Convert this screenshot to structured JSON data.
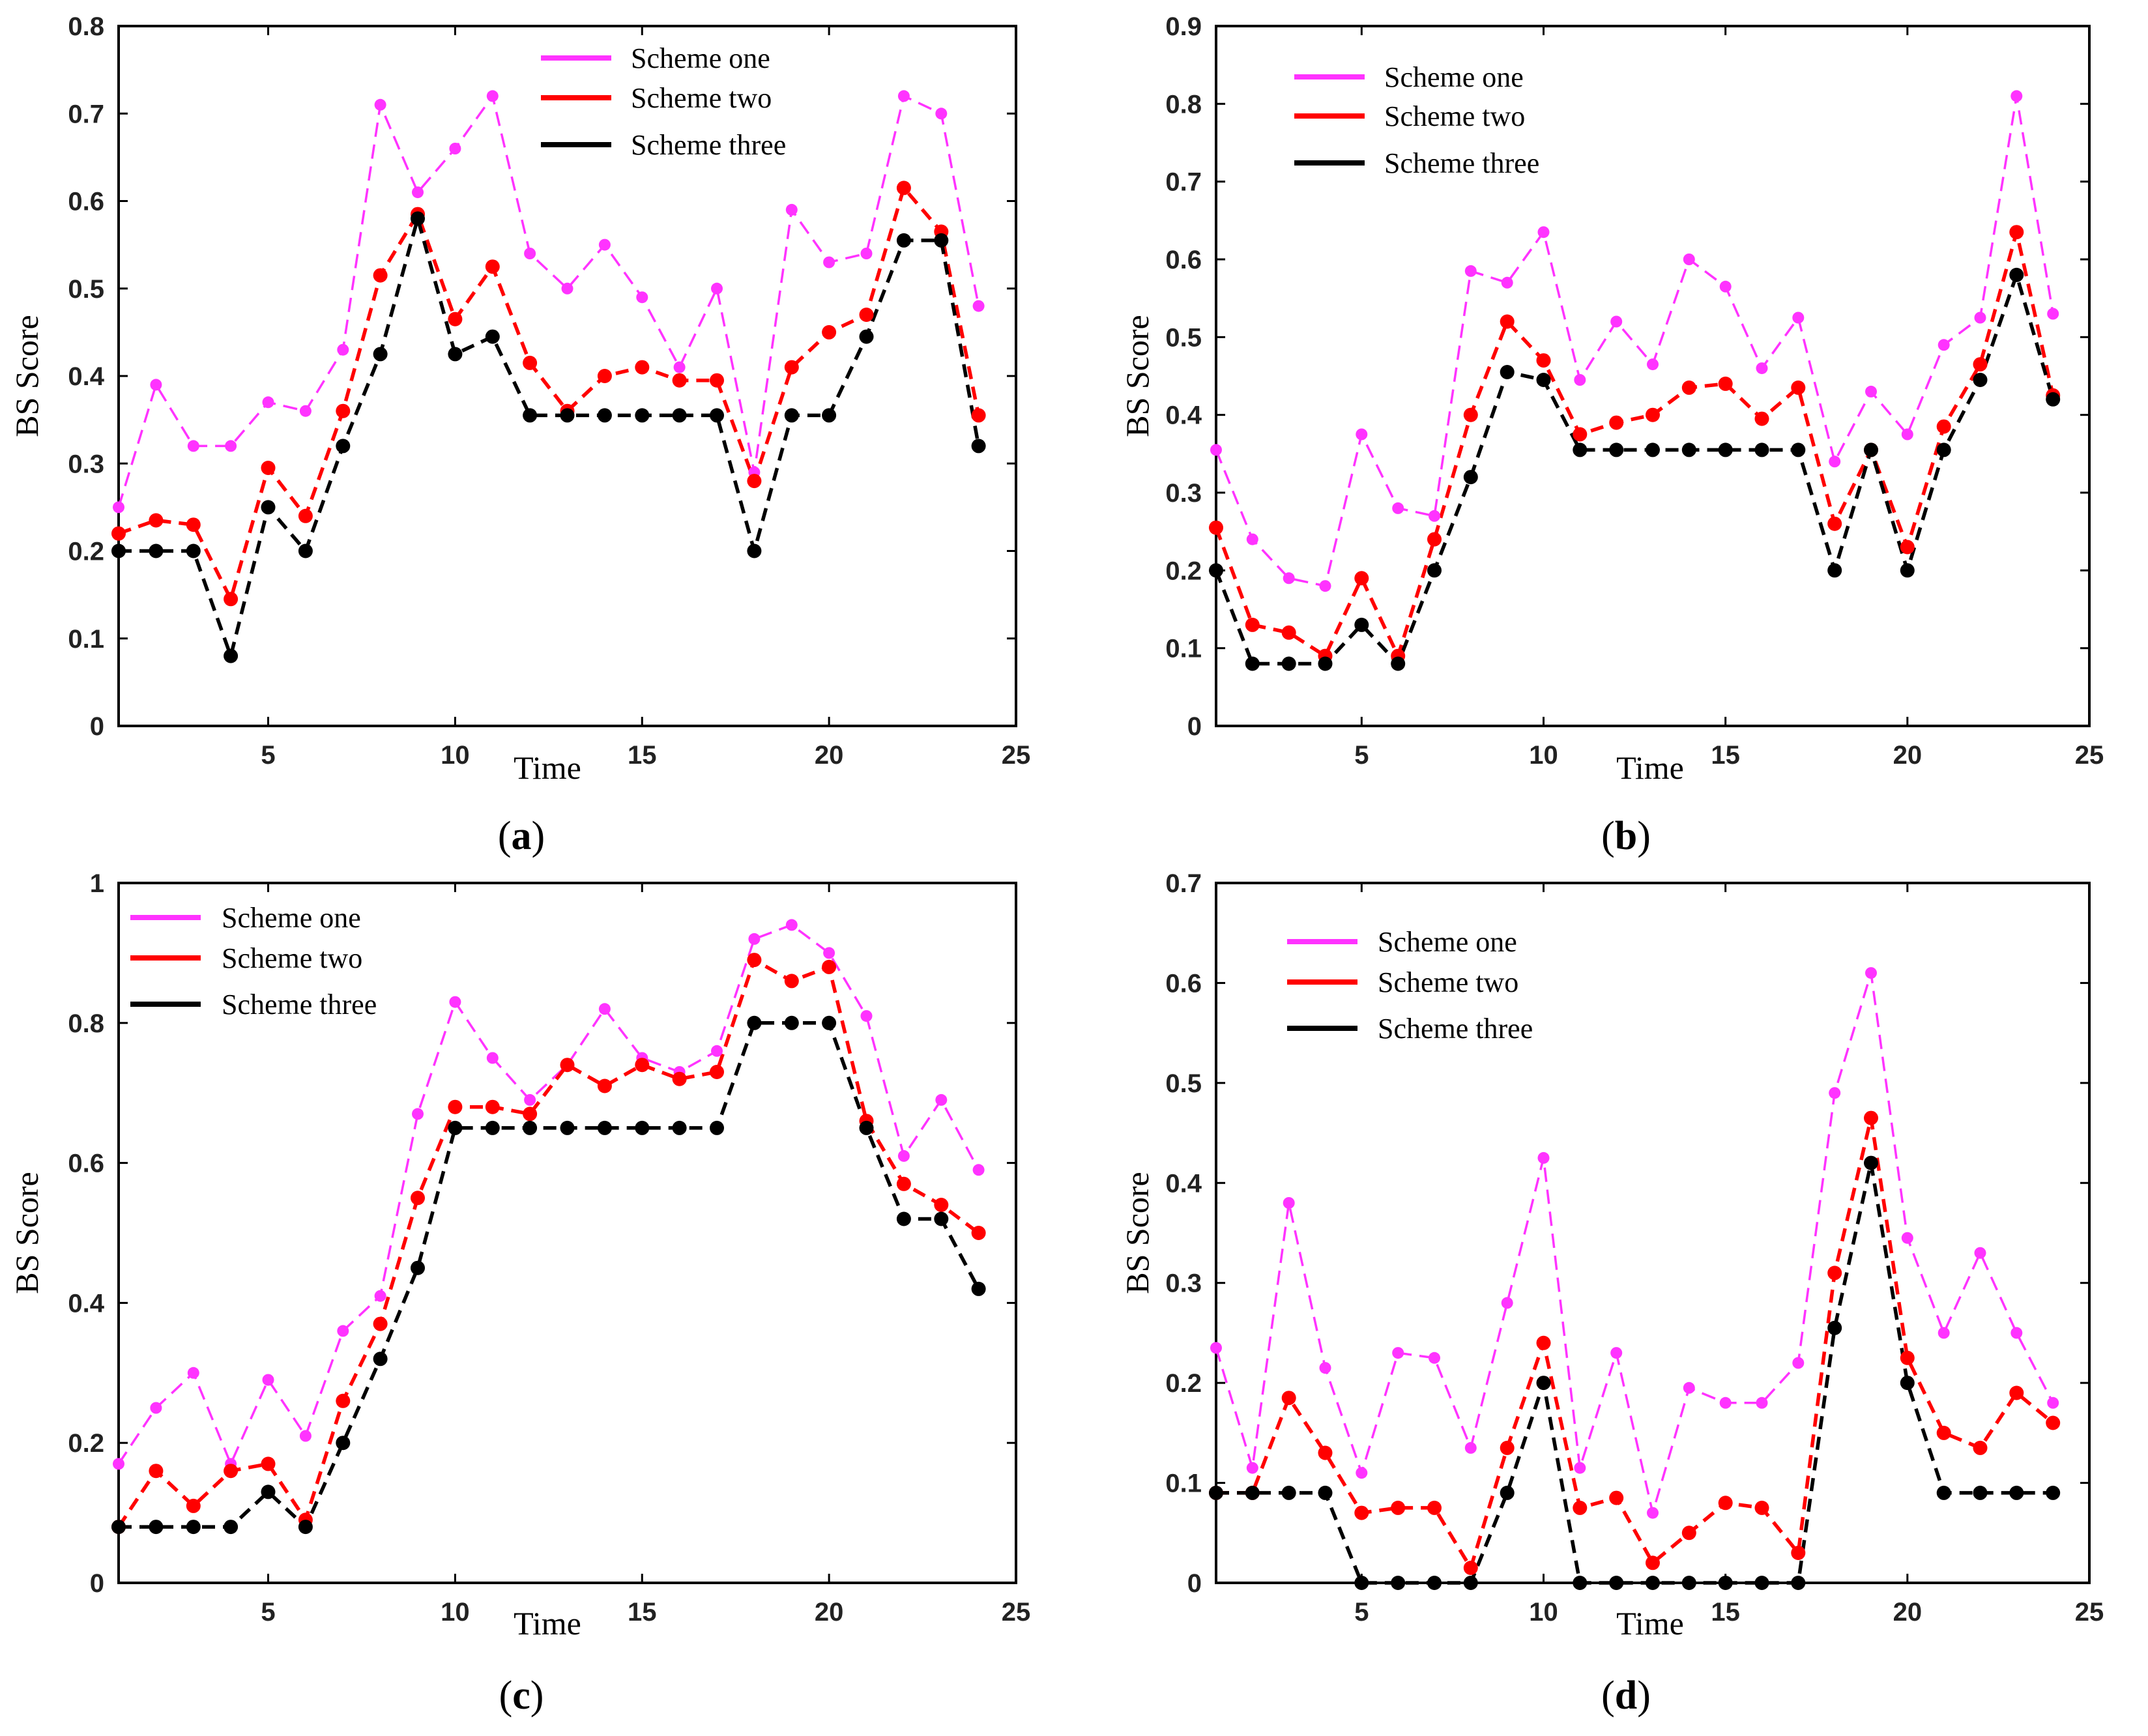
{
  "colors": {
    "scheme_one": "#ff33ff",
    "scheme_two": "#ff0000",
    "scheme_three": "#000000"
  },
  "chart_data": [
    {
      "type": "line",
      "panel": "a",
      "caption": {
        "open": "(",
        "letter": "a",
        "close": ")"
      },
      "xlabel": "Time",
      "ylabel": "BS Score",
      "xlim": [
        1,
        25
      ],
      "ylim": [
        0,
        0.8
      ],
      "xticks": [
        5,
        10,
        15,
        20,
        25
      ],
      "xtick_labels": [
        "5",
        "10",
        "15",
        "20",
        "25"
      ],
      "yticks": [
        0,
        0.1,
        0.2,
        0.3,
        0.4,
        0.5,
        0.6,
        0.7,
        0.8
      ],
      "ytick_labels": [
        "0",
        "0.1",
        "0.2",
        "0.3",
        "0.4",
        "0.5",
        "0.6",
        "0.7",
        "0.8"
      ],
      "legend_position": "top-center",
      "x": [
        1,
        2,
        3,
        4,
        5,
        6,
        7,
        8,
        9,
        10,
        11,
        12,
        13,
        14,
        15,
        16,
        17,
        18,
        19,
        20,
        21,
        22,
        23,
        24
      ],
      "series": [
        {
          "name": "Scheme one",
          "color": "#ff33ff",
          "values": [
            0.25,
            0.39,
            0.32,
            0.32,
            0.37,
            0.36,
            0.43,
            0.71,
            0.61,
            0.66,
            0.72,
            0.54,
            0.5,
            0.55,
            0.49,
            0.41,
            0.5,
            0.29,
            0.59,
            0.53,
            0.54,
            0.72,
            0.7,
            0.48
          ]
        },
        {
          "name": "Scheme two",
          "color": "#ff0000",
          "values": [
            0.22,
            0.235,
            0.23,
            0.145,
            0.295,
            0.24,
            0.36,
            0.515,
            0.585,
            0.465,
            0.525,
            0.415,
            0.36,
            0.4,
            0.41,
            0.395,
            0.395,
            0.28,
            0.41,
            0.45,
            0.47,
            0.615,
            0.565,
            0.355
          ]
        },
        {
          "name": "Scheme three",
          "color": "#000000",
          "values": [
            0.2,
            0.2,
            0.2,
            0.08,
            0.25,
            0.2,
            0.32,
            0.425,
            0.58,
            0.425,
            0.445,
            0.355,
            0.355,
            0.355,
            0.355,
            0.355,
            0.355,
            0.2,
            0.355,
            0.355,
            0.445,
            0.555,
            0.555,
            0.32
          ]
        }
      ]
    },
    {
      "type": "line",
      "panel": "b",
      "caption": {
        "open": "(",
        "letter": "b",
        "close": ")"
      },
      "xlabel": "Time",
      "ylabel": "BS Score",
      "xlim": [
        1,
        25
      ],
      "ylim": [
        0,
        0.9
      ],
      "xticks": [
        5,
        10,
        15,
        20,
        25
      ],
      "xtick_labels": [
        "5",
        "10",
        "15",
        "20",
        "25"
      ],
      "yticks": [
        0,
        0.1,
        0.2,
        0.3,
        0.4,
        0.5,
        0.6,
        0.7,
        0.8,
        0.9
      ],
      "ytick_labels": [
        "0",
        "0.1",
        "0.2",
        "0.3",
        "0.4",
        "0.5",
        "0.6",
        "0.7",
        "0.8",
        "0.9"
      ],
      "legend_position": "top-left",
      "x": [
        1,
        2,
        3,
        4,
        5,
        6,
        7,
        8,
        9,
        10,
        11,
        12,
        13,
        14,
        15,
        16,
        17,
        18,
        19,
        20,
        21,
        22,
        23,
        24
      ],
      "series": [
        {
          "name": "Scheme one",
          "color": "#ff33ff",
          "values": [
            0.355,
            0.24,
            0.19,
            0.18,
            0.375,
            0.28,
            0.27,
            0.585,
            0.57,
            0.635,
            0.445,
            0.52,
            0.465,
            0.6,
            0.565,
            0.46,
            0.525,
            0.34,
            0.43,
            0.375,
            0.49,
            0.525,
            0.81,
            0.53
          ]
        },
        {
          "name": "Scheme two",
          "color": "#ff0000",
          "values": [
            0.255,
            0.13,
            0.12,
            0.09,
            0.19,
            0.09,
            0.24,
            0.4,
            0.52,
            0.47,
            0.375,
            0.39,
            0.4,
            0.435,
            0.44,
            0.395,
            0.435,
            0.26,
            0.355,
            0.23,
            0.385,
            0.465,
            0.635,
            0.425
          ]
        },
        {
          "name": "Scheme three",
          "color": "#000000",
          "values": [
            0.2,
            0.08,
            0.08,
            0.08,
            0.13,
            0.08,
            0.2,
            0.32,
            0.455,
            0.445,
            0.355,
            0.355,
            0.355,
            0.355,
            0.355,
            0.355,
            0.355,
            0.2,
            0.355,
            0.2,
            0.355,
            0.445,
            0.58,
            0.42
          ]
        }
      ]
    },
    {
      "type": "line",
      "panel": "c",
      "caption": {
        "open": "(",
        "letter": "c",
        "close": ")"
      },
      "xlabel": "Time",
      "ylabel": "BS Score",
      "xlim": [
        1,
        25
      ],
      "ylim": [
        0,
        1.0
      ],
      "xticks": [
        5,
        10,
        15,
        20,
        25
      ],
      "xtick_labels": [
        "5",
        "10",
        "15",
        "20",
        "25"
      ],
      "yticks": [
        0,
        0.2,
        0.4,
        0.6,
        0.8,
        1.0
      ],
      "ytick_labels": [
        "0",
        "0.2",
        "0.4",
        "0.6",
        "0.8",
        "1"
      ],
      "legend_position": "top-left",
      "x": [
        1,
        2,
        3,
        4,
        5,
        6,
        7,
        8,
        9,
        10,
        11,
        12,
        13,
        14,
        15,
        16,
        17,
        18,
        19,
        20,
        21,
        22,
        23,
        24
      ],
      "series": [
        {
          "name": "Scheme one",
          "color": "#ff33ff",
          "values": [
            0.17,
            0.25,
            0.3,
            0.17,
            0.29,
            0.21,
            0.36,
            0.41,
            0.67,
            0.83,
            0.75,
            0.69,
            0.74,
            0.82,
            0.75,
            0.73,
            0.76,
            0.92,
            0.94,
            0.9,
            0.81,
            0.61,
            0.69,
            0.59
          ]
        },
        {
          "name": "Scheme two",
          "color": "#ff0000",
          "values": [
            0.08,
            0.16,
            0.11,
            0.16,
            0.17,
            0.09,
            0.26,
            0.37,
            0.55,
            0.68,
            0.68,
            0.67,
            0.74,
            0.71,
            0.74,
            0.72,
            0.73,
            0.89,
            0.86,
            0.88,
            0.66,
            0.57,
            0.54,
            0.5
          ]
        },
        {
          "name": "Scheme three",
          "color": "#000000",
          "values": [
            0.08,
            0.08,
            0.08,
            0.08,
            0.13,
            0.08,
            0.2,
            0.32,
            0.45,
            0.65,
            0.65,
            0.65,
            0.65,
            0.65,
            0.65,
            0.65,
            0.65,
            0.8,
            0.8,
            0.8,
            0.65,
            0.52,
            0.52,
            0.42
          ]
        }
      ]
    },
    {
      "type": "line",
      "panel": "d",
      "caption": {
        "open": "(",
        "letter": "d",
        "close": ")"
      },
      "xlabel": "Time",
      "ylabel": "BS Score",
      "xlim": [
        1,
        25
      ],
      "ylim": [
        0,
        0.7
      ],
      "xticks": [
        5,
        10,
        15,
        20,
        25
      ],
      "xtick_labels": [
        "5",
        "10",
        "15",
        "20",
        "25"
      ],
      "yticks": [
        0,
        0.1,
        0.2,
        0.3,
        0.4,
        0.5,
        0.6,
        0.7
      ],
      "ytick_labels": [
        "0",
        "0.1",
        "0.2",
        "0.3",
        "0.4",
        "0.5",
        "0.6",
        "0.7"
      ],
      "legend_position": "top-left",
      "x": [
        1,
        2,
        3,
        4,
        5,
        6,
        7,
        8,
        9,
        10,
        11,
        12,
        13,
        14,
        15,
        16,
        17,
        18,
        19,
        20,
        21,
        22,
        23,
        24
      ],
      "series": [
        {
          "name": "Scheme one",
          "color": "#ff33ff",
          "values": [
            0.235,
            0.115,
            0.38,
            0.215,
            0.11,
            0.23,
            0.225,
            0.135,
            0.28,
            0.425,
            0.115,
            0.23,
            0.07,
            0.195,
            0.18,
            0.18,
            0.22,
            0.49,
            0.61,
            0.345,
            0.25,
            0.33,
            0.25,
            0.18
          ]
        },
        {
          "name": "Scheme two",
          "color": "#ff0000",
          "values": [
            0.09,
            0.09,
            0.185,
            0.13,
            0.07,
            0.075,
            0.075,
            0.015,
            0.135,
            0.24,
            0.075,
            0.085,
            0.02,
            0.05,
            0.08,
            0.075,
            0.03,
            0.31,
            0.465,
            0.225,
            0.15,
            0.135,
            0.19,
            0.16
          ]
        },
        {
          "name": "Scheme three",
          "color": "#000000",
          "values": [
            0.09,
            0.09,
            0.09,
            0.09,
            0.0,
            0.0,
            0.0,
            0.0,
            0.09,
            0.2,
            0.0,
            0.0,
            0.0,
            0.0,
            0.0,
            0.0,
            0.0,
            0.255,
            0.42,
            0.2,
            0.09,
            0.09,
            0.09,
            0.09
          ]
        }
      ]
    }
  ]
}
